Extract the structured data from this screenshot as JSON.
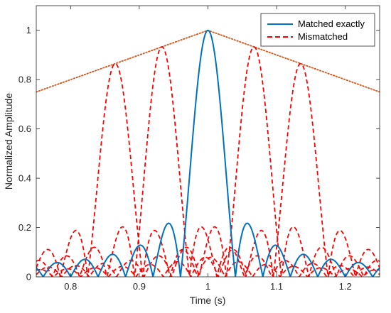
{
  "chart_data": {
    "type": "line",
    "xlabel": "Time (s)",
    "ylabel": "Normalized Amplitude",
    "xlim": [
      0.75,
      1.25
    ],
    "ylim": [
      0,
      1.1
    ],
    "xticks": [
      0.8,
      0.9,
      1.0,
      1.1,
      1.2
    ],
    "xtick_labels": [
      "0.8",
      "0.9",
      "1",
      "1.1",
      "1.2"
    ],
    "yticks": [
      0,
      0.2,
      0.4,
      0.6,
      0.8,
      1.0
    ],
    "ytick_labels": [
      "0",
      "0.2",
      "0.4",
      "0.6",
      "0.8",
      "1"
    ],
    "legend_position": "top-right",
    "legend": [
      {
        "label": "Matched exactly",
        "color": "#0072BD",
        "style": "solid"
      },
      {
        "label": "Mismatched",
        "color": "#FF0000",
        "style": "dashed"
      }
    ],
    "series": [
      {
        "name": "Matched exactly",
        "color": "#0072BD",
        "style": "solid",
        "shape": "abs-sinc",
        "center": 1.0,
        "peak": 1.0,
        "first_null_offset": 0.04
      },
      {
        "name": "Mismatched",
        "color": "#FF0000",
        "style": "dashed",
        "shape": "abs-sinc",
        "curves": [
          {
            "center": 0.865,
            "peak": 0.865,
            "first_null_offset": 0.04
          },
          {
            "center": 0.933,
            "peak": 0.933,
            "first_null_offset": 0.04
          },
          {
            "center": 1.067,
            "peak": 0.933,
            "first_null_offset": 0.04
          },
          {
            "center": 1.135,
            "peak": 0.865,
            "first_null_offset": 0.04
          }
        ]
      }
    ],
    "envelope": {
      "color": "#D95319",
      "style": "dotted",
      "x": [
        0.75,
        1.0,
        1.25
      ],
      "y": [
        0.75,
        1.0,
        0.75
      ]
    }
  }
}
